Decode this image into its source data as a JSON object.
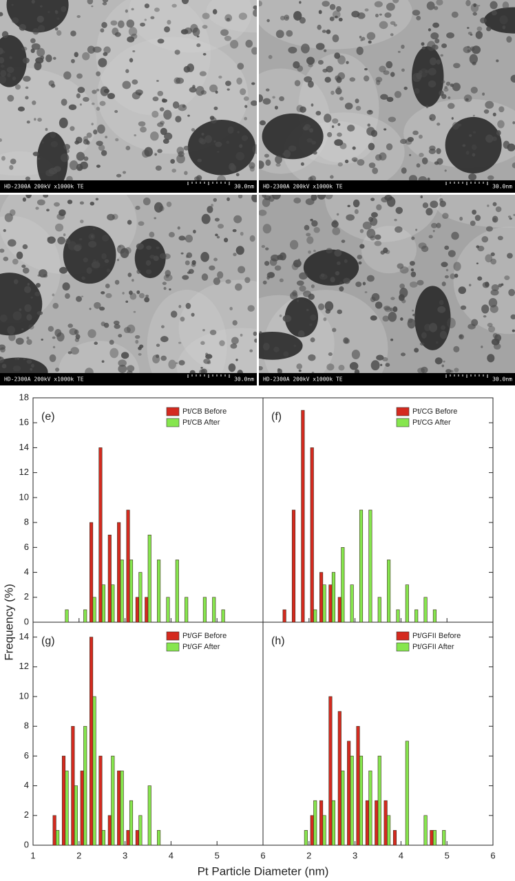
{
  "images": [
    {
      "caption": "HD-2300A 200kV x1000k TE",
      "scale": "30.0nm"
    },
    {
      "caption": "HD-2300A 200kV x1000k TE",
      "scale": "30.0nm"
    },
    {
      "caption": "HD-2300A 200kV x1000k TE",
      "scale": "30.0nm"
    },
    {
      "caption": "HD-2300A 200kV x1000k TE",
      "scale": "30.0nm"
    }
  ],
  "figure": {
    "xlabel": "Pt Particle Diameter (nm)",
    "ylabel": "Frequency (%)"
  },
  "chart_data": [
    {
      "type": "bar",
      "label": "(e)",
      "x": [
        1.7,
        1.9,
        2.1,
        2.3,
        2.5,
        2.7,
        2.9,
        3.1,
        3.3,
        3.5,
        3.7,
        3.9,
        4.1,
        4.3,
        4.5,
        4.7,
        4.9,
        5.1
      ],
      "series": [
        {
          "name": "Pt/CB Before",
          "color": "#d42a1f",
          "values": [
            null,
            null,
            null,
            8,
            14,
            7,
            8,
            9,
            2,
            2,
            null,
            null,
            null,
            null,
            null,
            null,
            null,
            null
          ]
        },
        {
          "name": "Pt/CB After",
          "color": "#86e64e",
          "values": [
            1,
            null,
            1,
            2,
            3,
            3,
            5,
            5,
            4,
            7,
            5,
            2,
            5,
            2,
            null,
            2,
            2,
            1
          ]
        }
      ],
      "xlim": [
        1,
        6
      ],
      "ylim": [
        0,
        18
      ],
      "yticks": [
        0,
        2,
        4,
        6,
        8,
        10,
        12,
        14,
        16,
        18
      ]
    },
    {
      "type": "bar",
      "label": "(f)",
      "x": [
        1.5,
        1.7,
        1.9,
        2.1,
        2.3,
        2.5,
        2.7,
        2.9,
        3.1,
        3.3,
        3.5,
        3.7,
        3.9,
        4.1,
        4.3,
        4.5,
        4.7
      ],
      "series": [
        {
          "name": "Pt/CG Before",
          "color": "#d42a1f",
          "values": [
            1,
            9,
            17,
            14,
            4,
            3,
            2,
            null,
            null,
            null,
            null,
            null,
            null,
            null,
            null,
            null,
            null
          ]
        },
        {
          "name": "Pt/CG After",
          "color": "#86e64e",
          "values": [
            null,
            null,
            null,
            1,
            3,
            4,
            6,
            3,
            9,
            9,
            2,
            5,
            1,
            3,
            1,
            2,
            1
          ]
        }
      ],
      "xlim": [
        1,
        6
      ],
      "ylim": [
        0,
        18
      ]
    },
    {
      "type": "bar",
      "label": "(g)",
      "x": [
        1.5,
        1.7,
        1.9,
        2.1,
        2.3,
        2.5,
        2.7,
        2.9,
        3.1,
        3.3,
        3.5,
        3.7
      ],
      "series": [
        {
          "name": "Pt/GF Before",
          "color": "#d42a1f",
          "values": [
            2,
            6,
            8,
            5,
            14,
            6,
            2,
            5,
            1,
            1,
            null,
            null
          ]
        },
        {
          "name": "Pt/GF After",
          "color": "#86e64e",
          "values": [
            1,
            5,
            4,
            8,
            10,
            1,
            6,
            5,
            3,
            2,
            4,
            1
          ]
        }
      ],
      "xlim": [
        1,
        6
      ],
      "xticks": [
        1,
        2,
        3,
        4,
        5,
        6
      ],
      "ylim": [
        0,
        15
      ],
      "yticks": [
        0,
        2,
        4,
        6,
        8,
        10,
        12,
        14
      ]
    },
    {
      "type": "bar",
      "label": "(h)",
      "x": [
        1.9,
        2.1,
        2.3,
        2.5,
        2.7,
        2.9,
        3.1,
        3.3,
        3.5,
        3.7,
        3.9,
        4.1,
        4.3,
        4.5,
        4.7,
        4.9
      ],
      "series": [
        {
          "name": "Pt/GFII Before",
          "color": "#d42a1f",
          "values": [
            null,
            2,
            3,
            10,
            9,
            7,
            8,
            3,
            3,
            3,
            1,
            null,
            null,
            null,
            1,
            null
          ]
        },
        {
          "name": "Pt/GFII After",
          "color": "#86e64e",
          "values": [
            1,
            3,
            2,
            3,
            5,
            6,
            6,
            5,
            6,
            2,
            null,
            7,
            null,
            2,
            1,
            1
          ]
        }
      ],
      "xlim": [
        1,
        6
      ],
      "xticks": [
        2,
        3,
        4,
        5,
        6
      ],
      "ylim": [
        0,
        15
      ]
    }
  ]
}
